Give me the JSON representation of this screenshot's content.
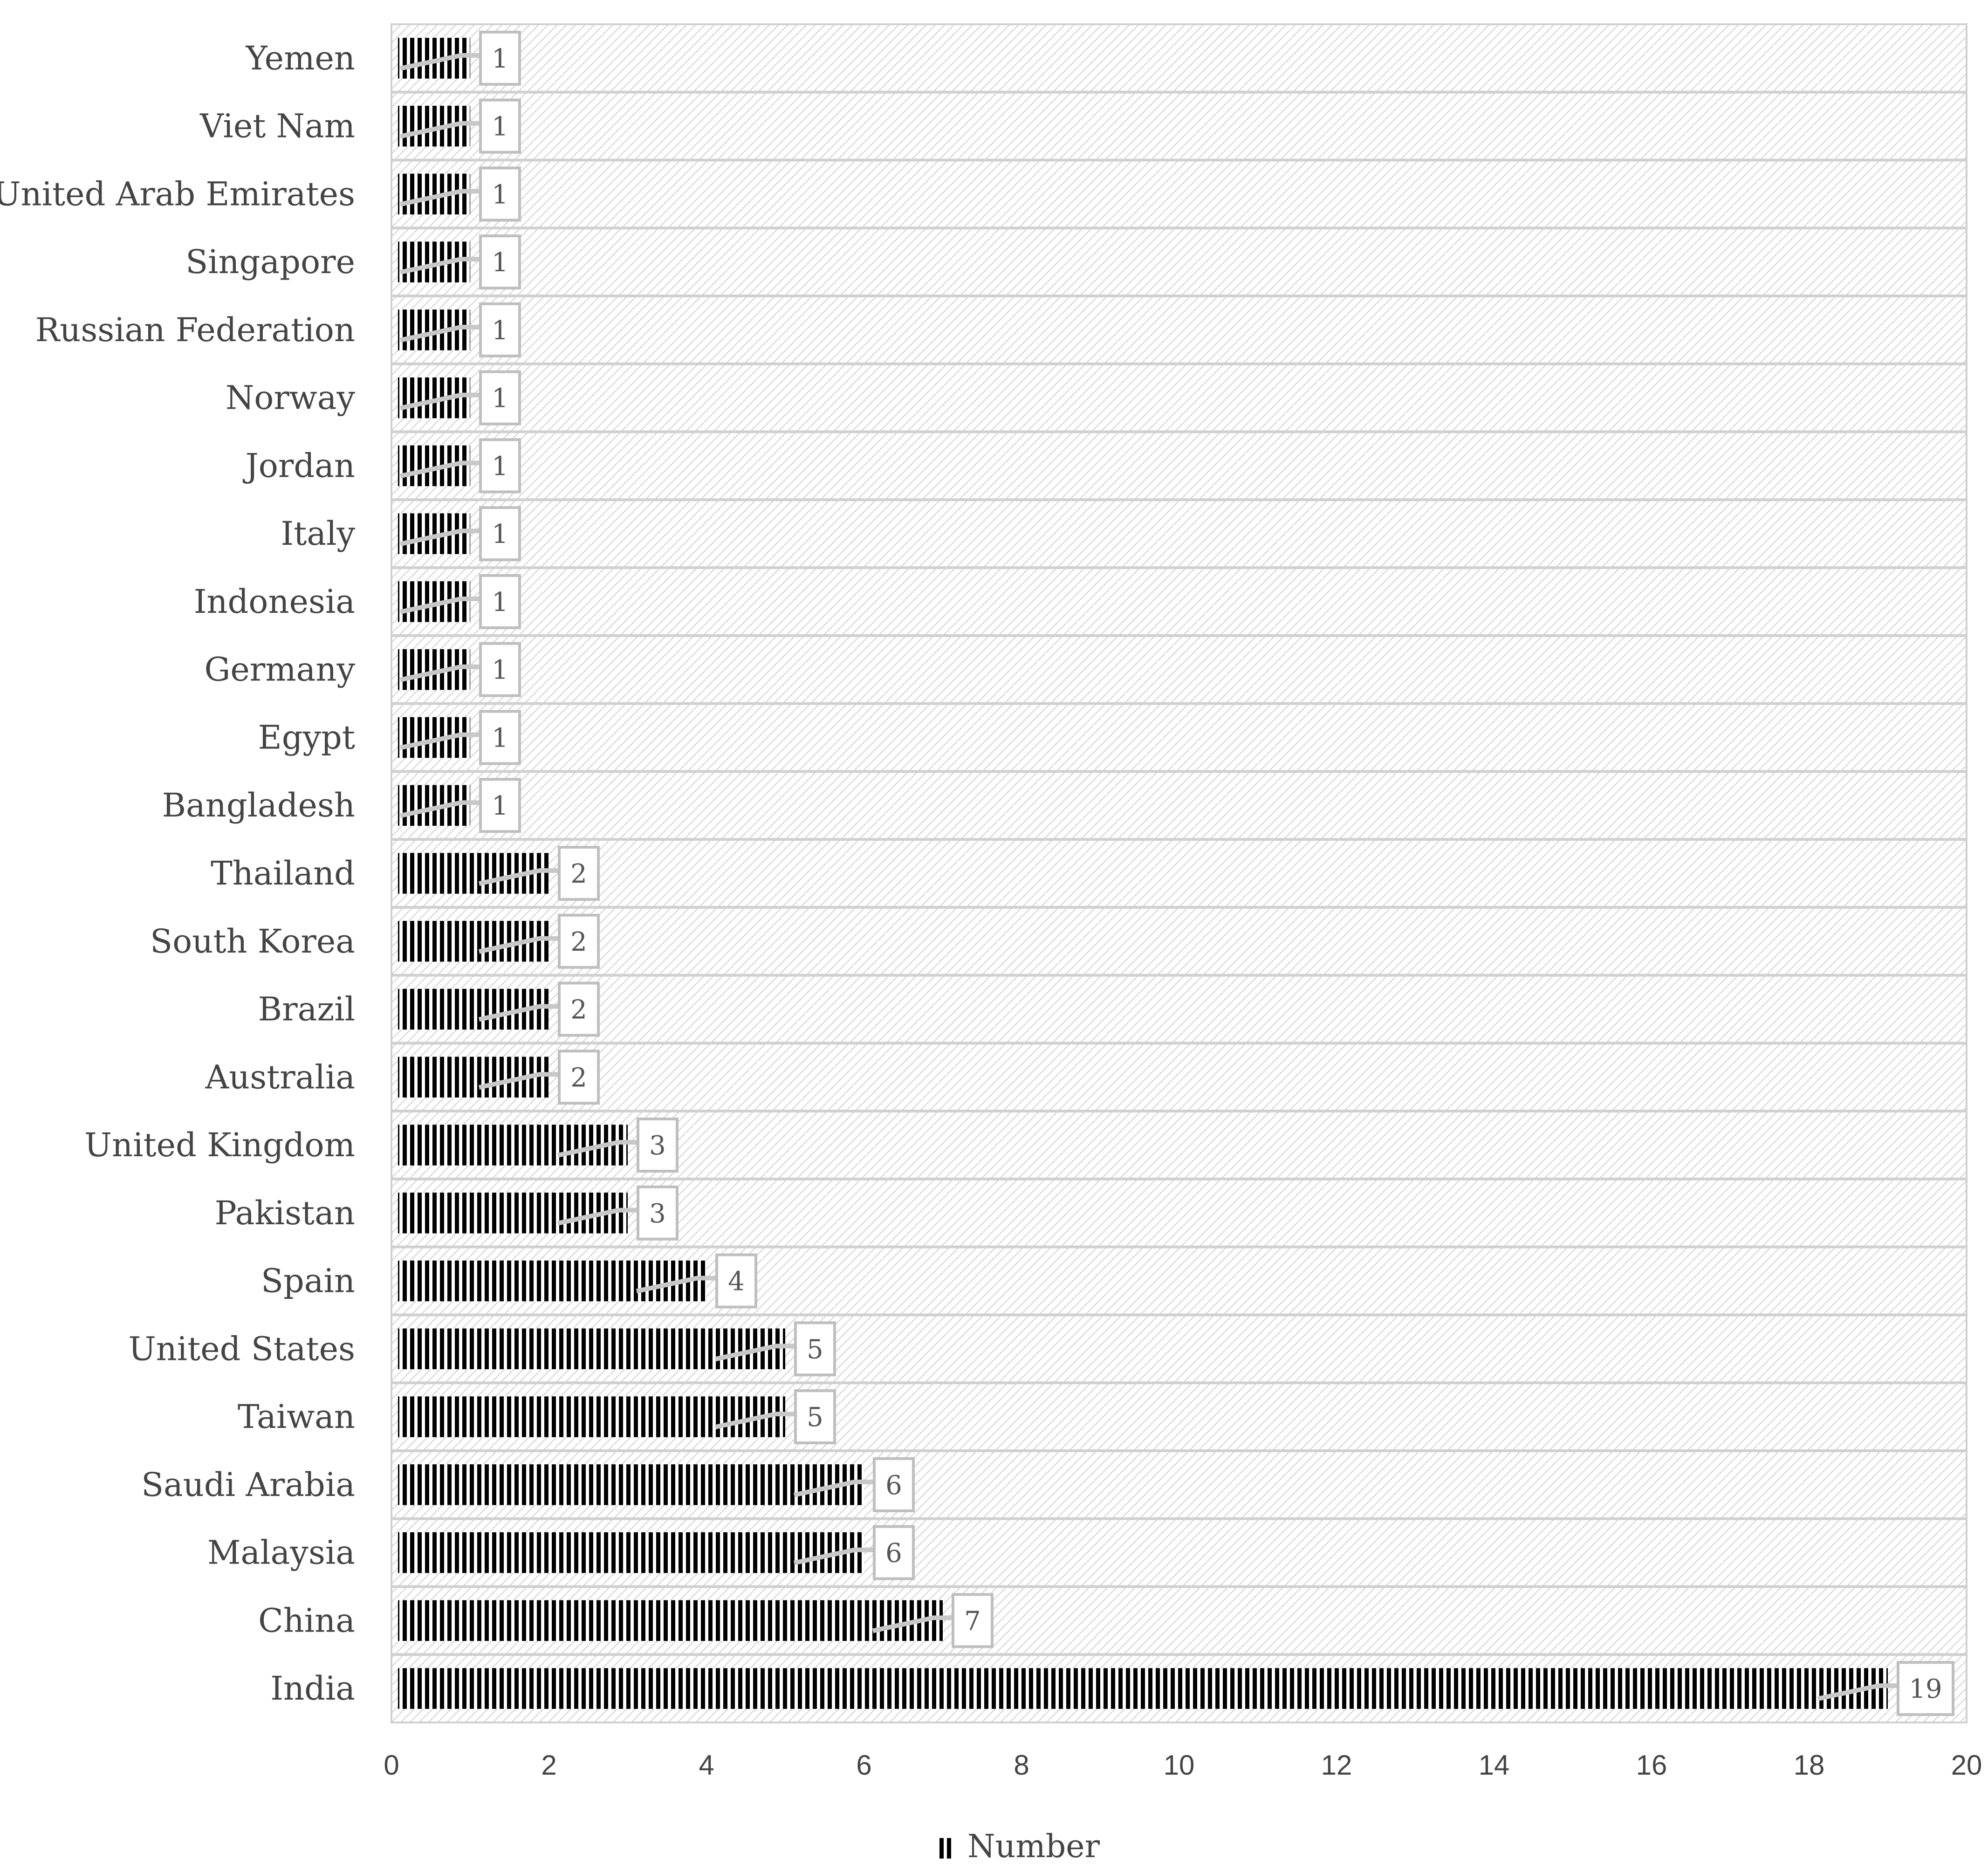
{
  "chart_data": {
    "type": "bar",
    "orientation": "horizontal",
    "categories": [
      "Yemen",
      "Viet Nam",
      "United Arab Emirates",
      "Singapore",
      "Russian Federation",
      "Norway",
      "Jordan",
      "Italy",
      "Indonesia",
      "Germany",
      "Egypt",
      "Bangladesh",
      "Thailand",
      "South Korea",
      "Brazil",
      "Australia",
      "United Kingdom",
      "Pakistan",
      "Spain",
      "United States",
      "Taiwan",
      "Saudi Arabia",
      "Malaysia",
      "China",
      "India"
    ],
    "series": [
      {
        "name": "Number",
        "values": [
          1,
          1,
          1,
          1,
          1,
          1,
          1,
          1,
          1,
          1,
          1,
          1,
          2,
          2,
          2,
          2,
          3,
          3,
          4,
          5,
          5,
          6,
          6,
          7,
          19
        ]
      }
    ],
    "x_ticks": [
      "0",
      "2",
      "4",
      "6",
      "8",
      "10",
      "12",
      "14",
      "16",
      "18",
      "20"
    ],
    "xlim": [
      0,
      20
    ],
    "data_labels": true,
    "legend_position": "bottom",
    "grid": false,
    "colors": {
      "bar": "#000000",
      "bar_stripe_gap": "#ffffff",
      "background_hatch": "#d9d9d9",
      "row_separator": "#d0d0d0",
      "label_box_border": "#bfbfbf",
      "text": "#444444"
    }
  }
}
